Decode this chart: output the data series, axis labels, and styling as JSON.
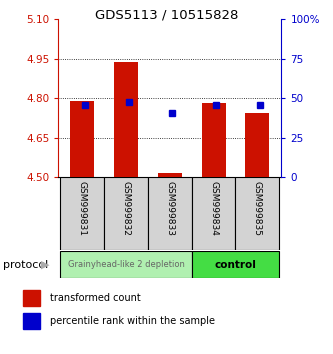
{
  "title": "GDS5113 / 10515828",
  "samples": [
    "GSM999831",
    "GSM999832",
    "GSM999833",
    "GSM999834",
    "GSM999835"
  ],
  "red_values": [
    4.79,
    4.938,
    4.515,
    4.78,
    4.745
  ],
  "blue_values": [
    4.775,
    4.787,
    4.742,
    4.773,
    4.776
  ],
  "y_min": 4.5,
  "y_max": 5.1,
  "y_ticks_left": [
    4.5,
    4.65,
    4.8,
    4.95,
    5.1
  ],
  "y_ticks_right": [
    0,
    25,
    50,
    75,
    100
  ],
  "bar_base": 4.5,
  "group1_label": "Grainyhead-like 2 depletion",
  "group2_label": "control",
  "group1_color": "#b0f0b0",
  "group2_color": "#44dd44",
  "bar_width": 0.55,
  "bar_color": "#cc1100",
  "dot_color": "#0000cc",
  "tick_color_left": "#cc1100",
  "tick_color_right": "#0000cc",
  "protocol_label": "protocol",
  "legend_red": "transformed count",
  "legend_blue": "percentile rank within the sample",
  "figsize": [
    3.33,
    3.54
  ],
  "dpi": 100
}
